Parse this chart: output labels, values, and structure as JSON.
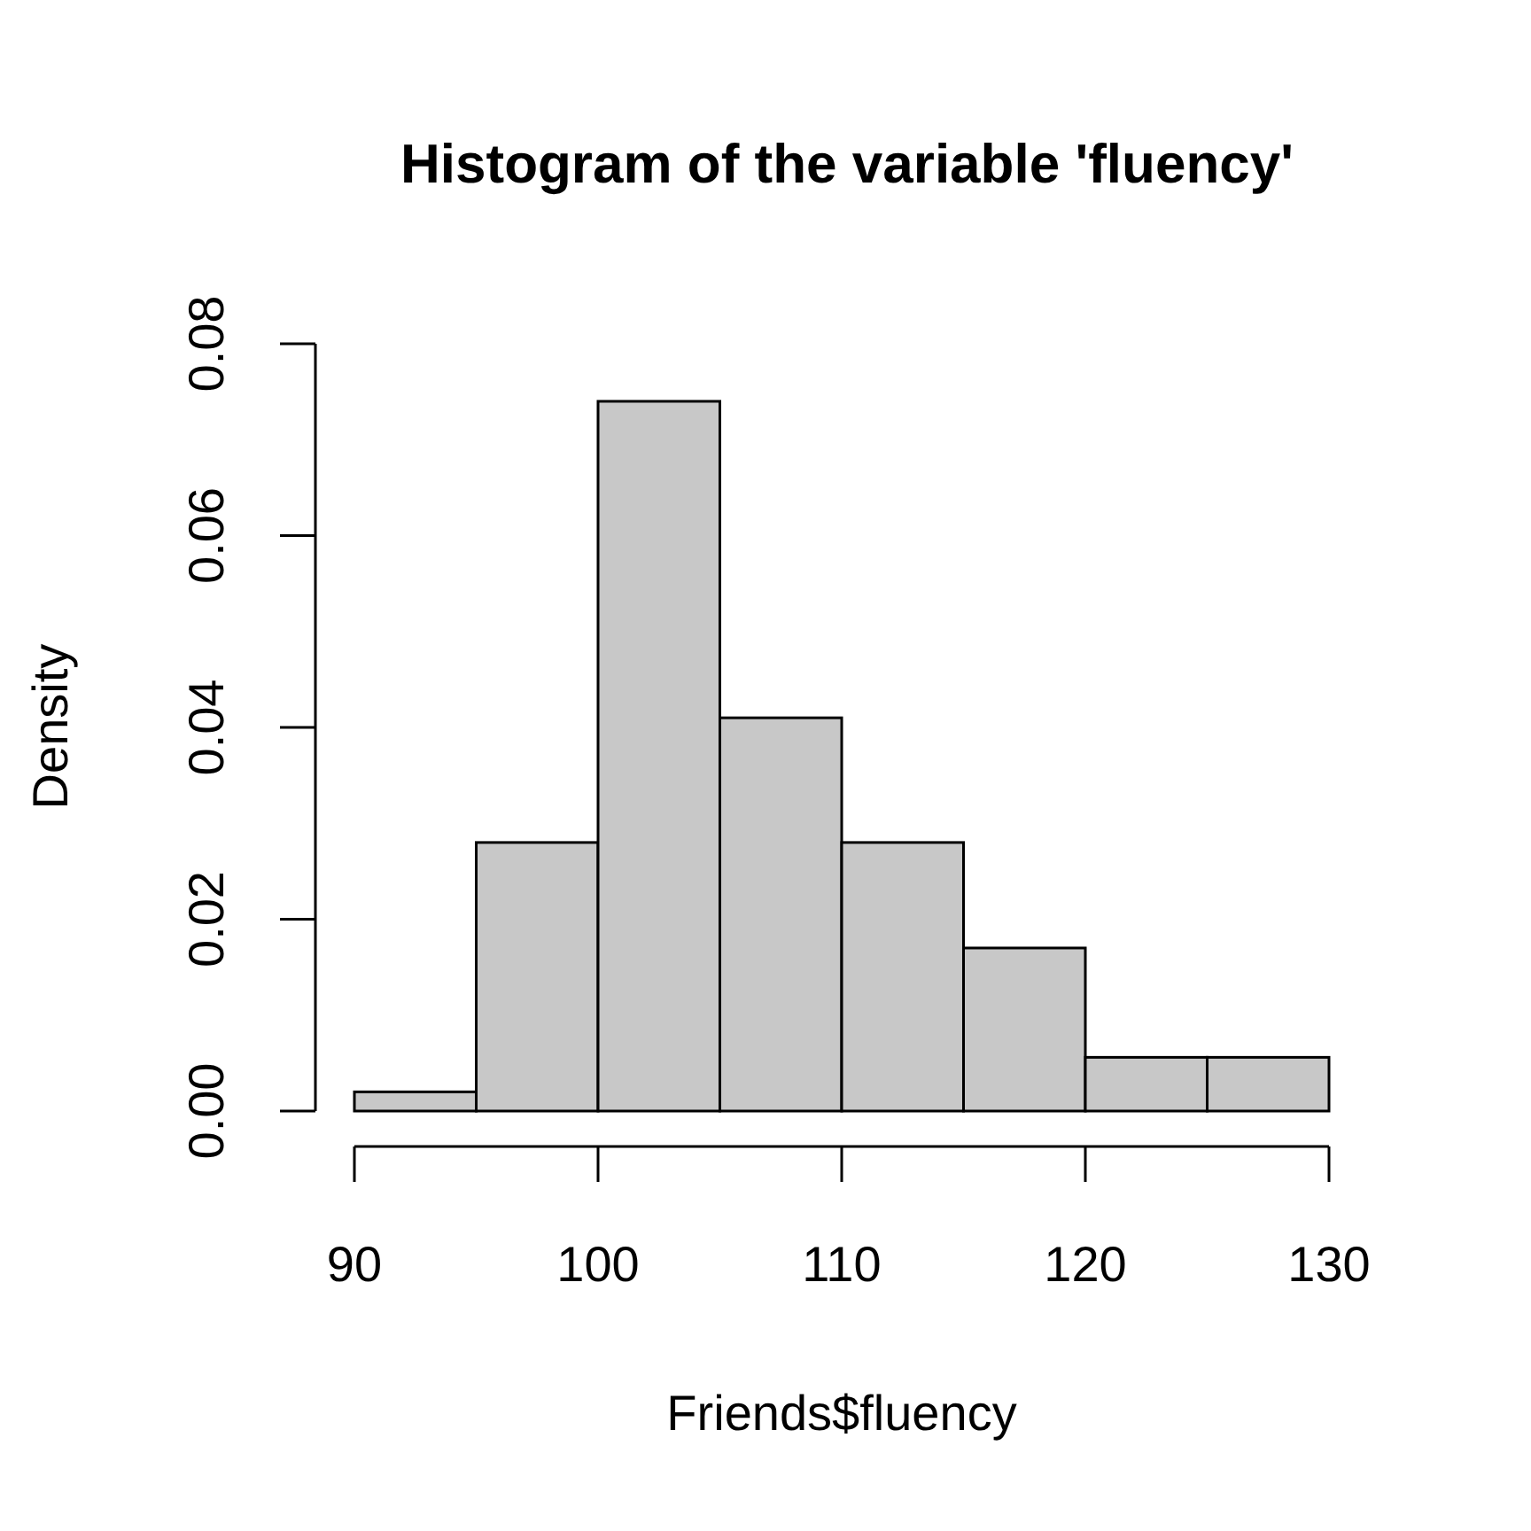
{
  "chart_data": {
    "type": "histogram",
    "title": "Histogram of the variable 'fluency'",
    "xlabel": "Friends$fluency",
    "ylabel": "Density",
    "bins": [
      90,
      95,
      100,
      105,
      110,
      115,
      120,
      125,
      130
    ],
    "values": [
      0.002,
      0.028,
      0.074,
      0.041,
      0.028,
      0.017,
      0.0056,
      0.0056
    ],
    "color": "#c8c8c8",
    "xlim": [
      90,
      130
    ],
    "xticks": [
      90,
      100,
      110,
      120,
      130
    ],
    "ylim": [
      0,
      0.08
    ],
    "yticks": [
      {
        "value": 0,
        "label": "0.00"
      },
      {
        "value": 0.02,
        "label": "0.02"
      },
      {
        "value": 0.04,
        "label": "0.04"
      },
      {
        "value": 0.06,
        "label": "0.06"
      },
      {
        "value": 0.08,
        "label": "0.08"
      }
    ]
  }
}
